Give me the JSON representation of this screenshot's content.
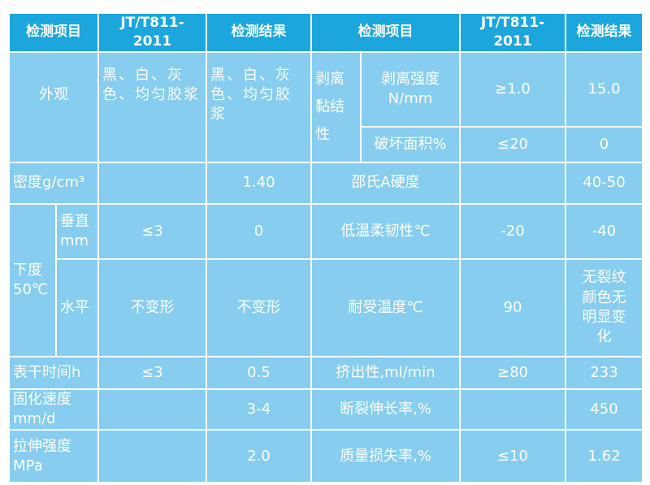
{
  "header": [
    "检测项目",
    "JT/T811-2011",
    "检测结果",
    "检测项目",
    "JT/T811-2011",
    "检测结果"
  ],
  "rows": {
    "appearance": {
      "item": "外观",
      "standard": "黑、白、灰色、均匀胶浆",
      "result": "黑、白、灰色、均匀胶浆"
    },
    "peel": {
      "group": "剥离黏结性",
      "strength_item": "剥离强度N/mm",
      "strength_standard": "≥1.0",
      "strength_result": "15.0",
      "damage_item": "破坏面积%",
      "damage_standard": "≤20",
      "damage_result": "0"
    },
    "density": {
      "item": "密度g/cm³",
      "standard": "",
      "result": "1.40",
      "item2": "邵氏A硬度",
      "standard2": "",
      "result2": "40-50"
    },
    "sag": {
      "group": "下度50℃",
      "vertical_item": "垂直mm",
      "vertical_standard": "≤3",
      "vertical_result": "0",
      "lowtemp_item": "低温柔韧性℃",
      "lowtemp_standard": "-20",
      "lowtemp_result": "-40",
      "horizontal_item": "水平",
      "horizontal_standard": "不变形",
      "horizontal_result": "不变形",
      "heat_item": "耐受温度℃",
      "heat_standard": "90",
      "heat_result": "无裂纹颜色无明显变化"
    },
    "surface_dry": {
      "item": "表干时间h",
      "standard": "≤3",
      "result": "0.5",
      "item2": "挤出性,ml/min",
      "standard2": "≥80",
      "result2": "233"
    },
    "cure": {
      "item": "固化速度mm/d",
      "standard": "",
      "result": "3-4",
      "item2": "断裂伸长率,%",
      "standard2": "",
      "result2": "450"
    },
    "tensile": {
      "item": "拉伸强度MPa",
      "standard": "",
      "result": "2.0",
      "item2": "质量损失率,%",
      "standard2": "≤10",
      "result2": "1.62"
    }
  },
  "colors": {
    "header": "#1ba6de",
    "cell": "#86cdef",
    "text": "#ffffff"
  }
}
